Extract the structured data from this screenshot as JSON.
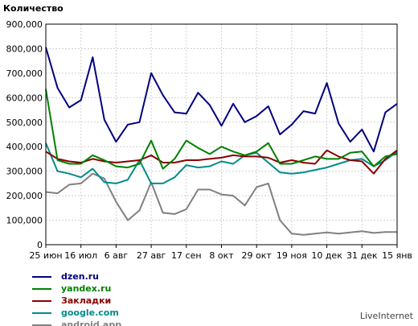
{
  "chart_data": {
    "type": "line",
    "ylabel": "Количество",
    "xlabel": "",
    "ylim": [
      0,
      900000
    ],
    "yticks": [
      "0",
      "100,000",
      "200,000",
      "300,000",
      "400,000",
      "500,000",
      "600,000",
      "700,000",
      "800,000",
      "900,000"
    ],
    "xtick_labels": [
      "25 июн",
      "16 июл",
      "6 авг",
      "27 авг",
      "17 сен",
      "8 окт",
      "29 окт",
      "19 ноя",
      "10 дек",
      "31 дек",
      "15 янв"
    ],
    "grid": true,
    "legend_position": "bottom-left",
    "series": [
      {
        "name": "dzen.ru",
        "color": "#000080",
        "values": [
          805000,
          640000,
          560000,
          590000,
          765000,
          510000,
          420000,
          490000,
          500000,
          700000,
          610000,
          540000,
          535000,
          620000,
          570000,
          485000,
          575000,
          500000,
          525000,
          565000,
          450000,
          490000,
          545000,
          535000,
          660000,
          495000,
          420000,
          470000,
          380000,
          540000,
          575000
        ]
      },
      {
        "name": "yandex.ru",
        "color": "#008000",
        "values": [
          635000,
          345000,
          330000,
          330000,
          365000,
          345000,
          320000,
          315000,
          330000,
          425000,
          310000,
          350000,
          425000,
          395000,
          370000,
          400000,
          380000,
          365000,
          380000,
          415000,
          330000,
          330000,
          345000,
          360000,
          350000,
          350000,
          375000,
          380000,
          320000,
          360000,
          370000
        ]
      },
      {
        "name": "Закладки",
        "color": "#8b0000",
        "values": [
          380000,
          350000,
          340000,
          335000,
          350000,
          340000,
          335000,
          340000,
          345000,
          365000,
          335000,
          335000,
          345000,
          345000,
          350000,
          355000,
          365000,
          360000,
          360000,
          355000,
          335000,
          345000,
          335000,
          330000,
          385000,
          360000,
          345000,
          340000,
          290000,
          350000,
          385000
        ]
      },
      {
        "name": "google.com",
        "color": "#008b8b",
        "values": [
          415000,
          300000,
          290000,
          275000,
          310000,
          255000,
          250000,
          265000,
          345000,
          250000,
          250000,
          275000,
          325000,
          315000,
          320000,
          340000,
          330000,
          365000,
          375000,
          335000,
          295000,
          290000,
          295000,
          305000,
          315000,
          330000,
          345000,
          350000,
          320000,
          345000,
          380000
        ]
      },
      {
        "name": "android.app",
        "color": "#808080",
        "values": [
          215000,
          210000,
          245000,
          250000,
          290000,
          270000,
          175000,
          100000,
          140000,
          255000,
          130000,
          125000,
          145000,
          225000,
          225000,
          205000,
          200000,
          160000,
          235000,
          250000,
          100000,
          45000,
          40000,
          45000,
          50000,
          45000,
          50000,
          55000,
          48000,
          52000,
          52000
        ]
      }
    ]
  },
  "credit": "LiveInternet"
}
